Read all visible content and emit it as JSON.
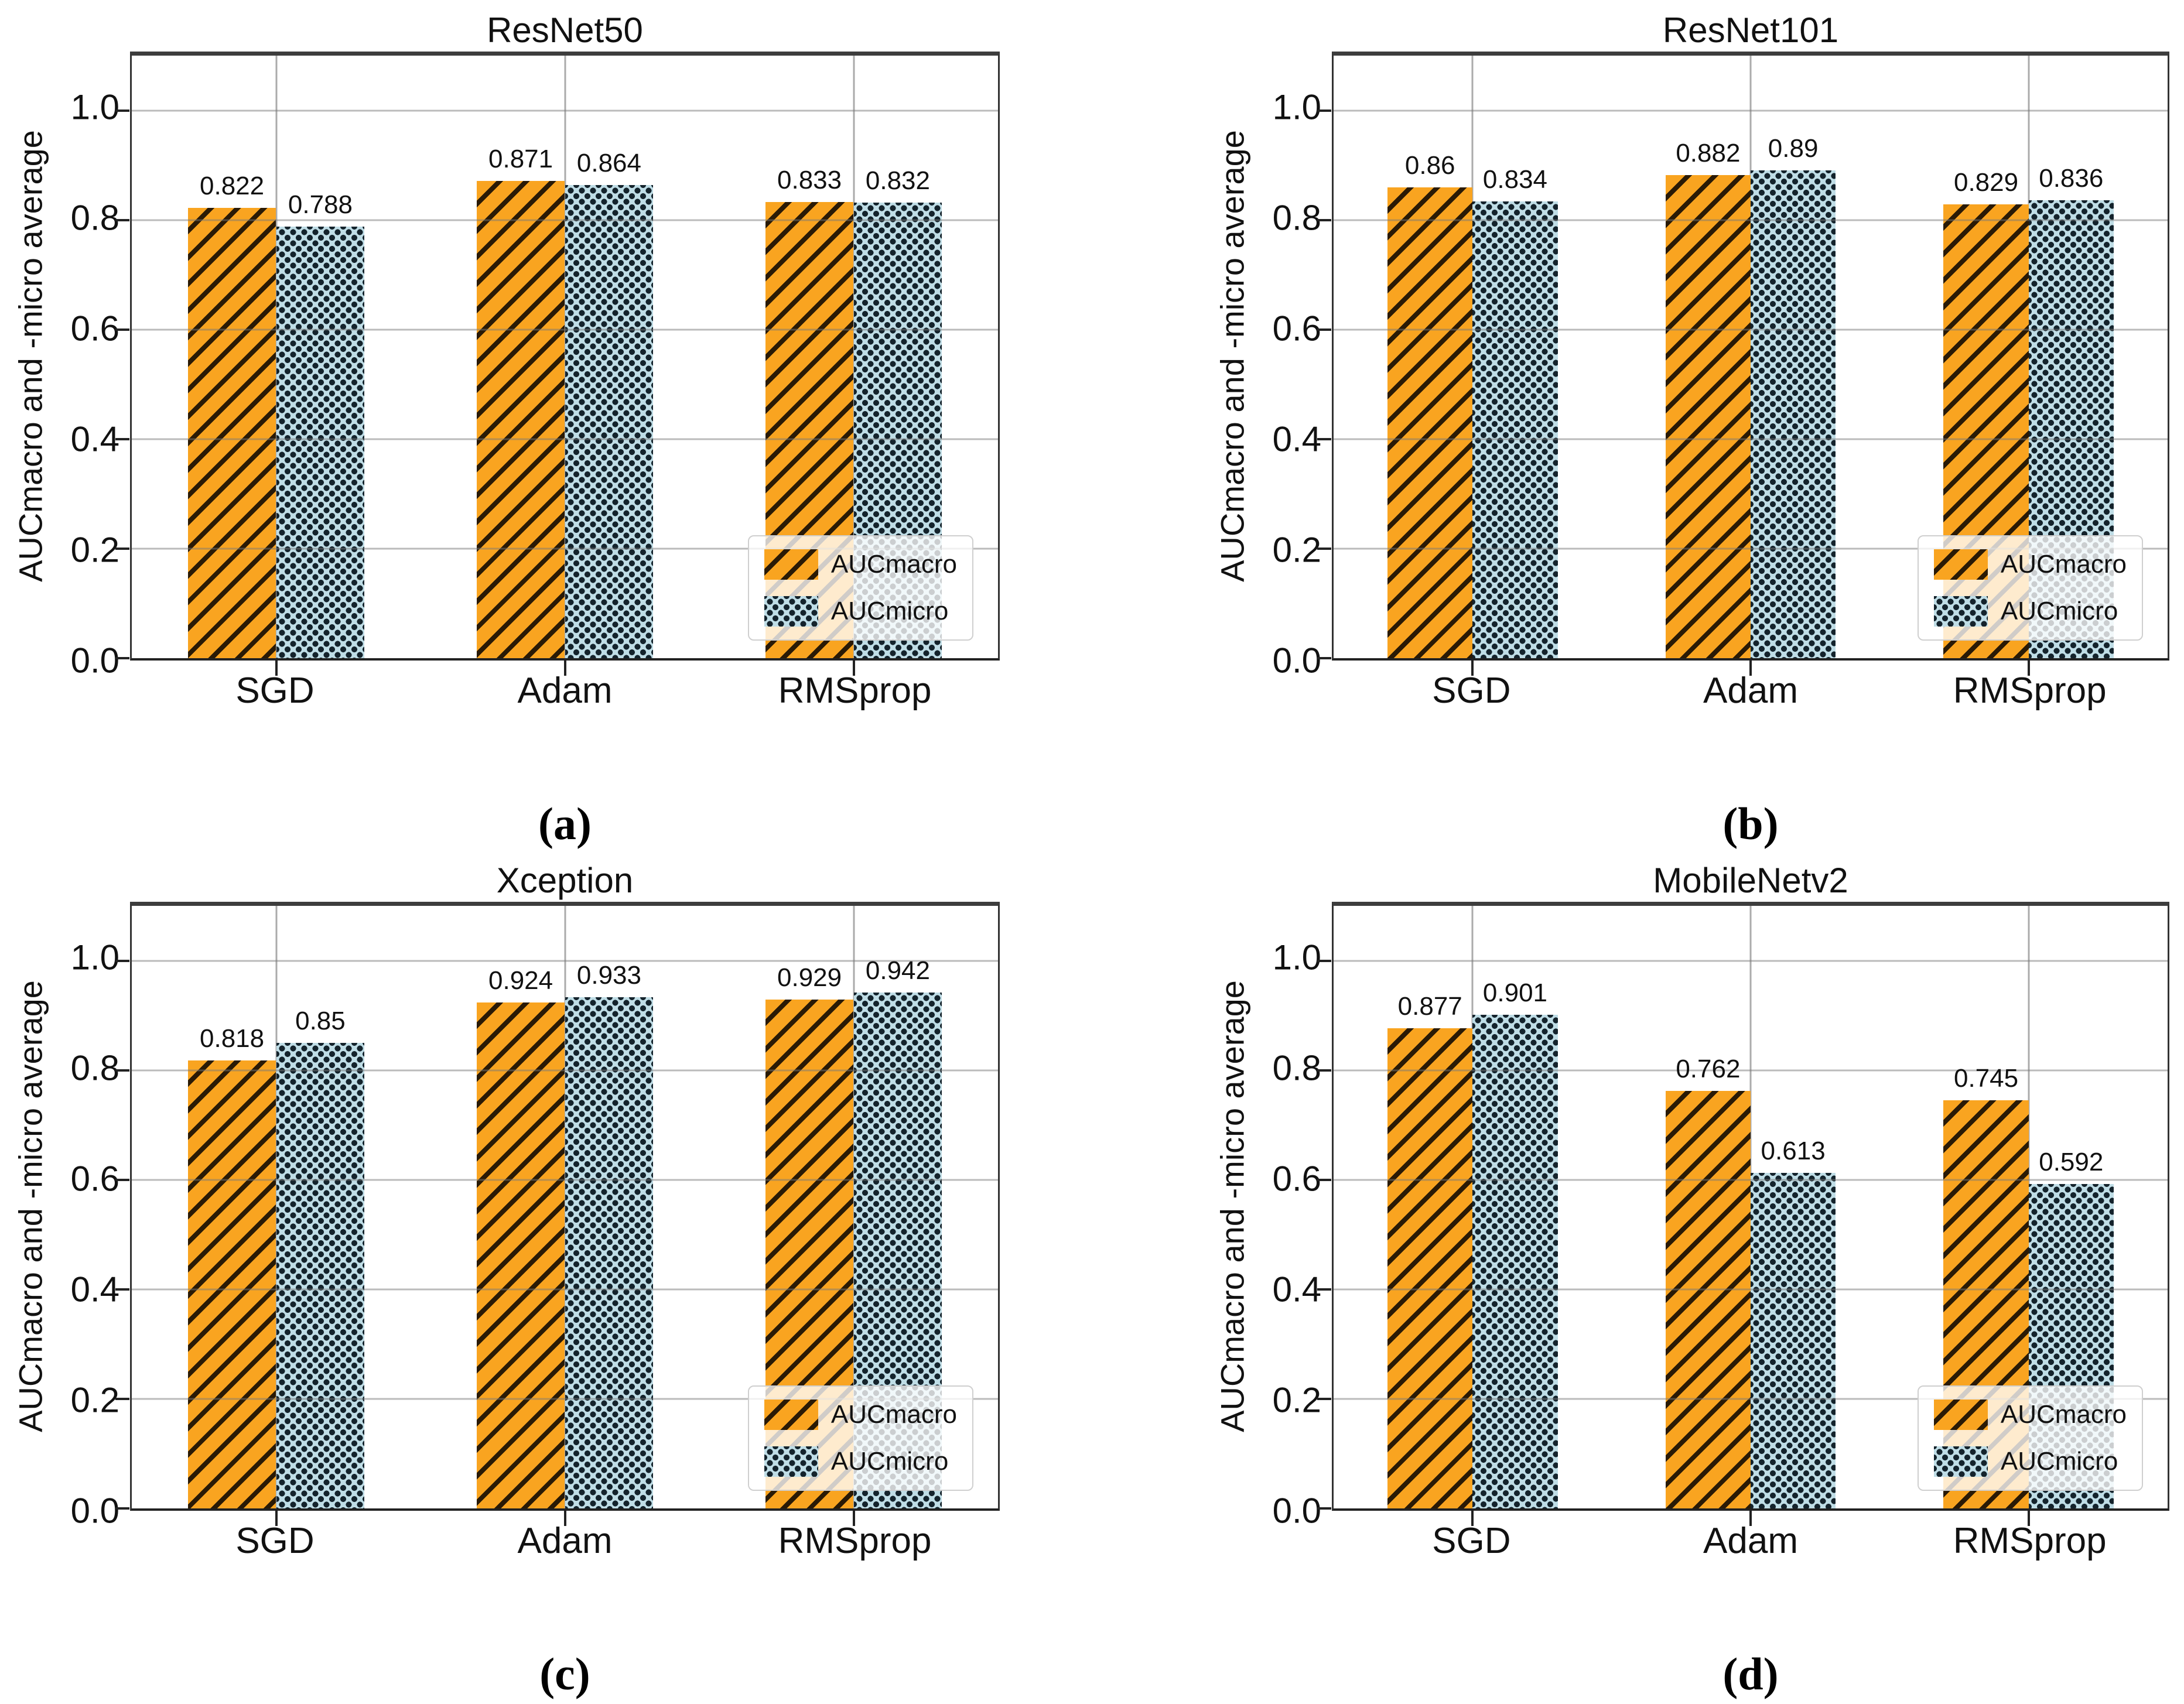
{
  "figure": {
    "background": "#ffffff",
    "ylabel": "AUCmacro and -micro average",
    "legend_labels": [
      "AUCmacro",
      "AUCmicro"
    ],
    "colors": {
      "macro_fill": "#F9A420",
      "macro_hatch": "#2A1A05",
      "micro_fill": "#BFDDE6",
      "micro_dot": "#14232C",
      "grid": "#ABABAB",
      "spine": "#333333",
      "text": "#111111"
    }
  },
  "chart_data": [
    {
      "type": "bar",
      "id": "a",
      "title": "ResNet50",
      "caption": "(a)",
      "categories": [
        "SGD",
        "Adam",
        "RMSprop"
      ],
      "series": [
        {
          "name": "AUCmacro",
          "values": [
            0.822,
            0.871,
            0.833
          ]
        },
        {
          "name": "AUCmicro",
          "values": [
            0.788,
            0.864,
            0.832
          ]
        }
      ],
      "xlabel": "",
      "ylabel": "AUCmacro and -micro average",
      "yticks": [
        0.0,
        0.2,
        0.4,
        0.6,
        0.8,
        1.0
      ],
      "ylim": [
        0,
        1.1
      ],
      "grid": true,
      "legend_position": "lower right"
    },
    {
      "type": "bar",
      "id": "b",
      "title": "ResNet101",
      "caption": "(b)",
      "categories": [
        "SGD",
        "Adam",
        "RMSprop"
      ],
      "series": [
        {
          "name": "AUCmacro",
          "values": [
            0.86,
            0.882,
            0.829
          ]
        },
        {
          "name": "AUCmicro",
          "values": [
            0.834,
            0.89,
            0.836
          ]
        }
      ],
      "xlabel": "",
      "ylabel": "AUCmacro and -micro average",
      "yticks": [
        0.0,
        0.2,
        0.4,
        0.6,
        0.8,
        1.0
      ],
      "ylim": [
        0,
        1.1
      ],
      "grid": true,
      "legend_position": "lower right"
    },
    {
      "type": "bar",
      "id": "c",
      "title": "Xception",
      "caption": "(c)",
      "categories": [
        "SGD",
        "Adam",
        "RMSprop"
      ],
      "series": [
        {
          "name": "AUCmacro",
          "values": [
            0.818,
            0.924,
            0.929
          ]
        },
        {
          "name": "AUCmicro",
          "values": [
            0.85,
            0.933,
            0.942
          ]
        }
      ],
      "xlabel": "",
      "ylabel": "AUCmacro and -micro average",
      "yticks": [
        0.0,
        0.2,
        0.4,
        0.6,
        0.8,
        1.0
      ],
      "ylim": [
        0,
        1.1
      ],
      "grid": true,
      "legend_position": "lower right"
    },
    {
      "type": "bar",
      "id": "d",
      "title": "MobileNetv2",
      "caption": "(d)",
      "categories": [
        "SGD",
        "Adam",
        "RMSprop"
      ],
      "series": [
        {
          "name": "AUCmacro",
          "values": [
            0.877,
            0.762,
            0.745
          ]
        },
        {
          "name": "AUCmicro",
          "values": [
            0.901,
            0.613,
            0.592
          ]
        }
      ],
      "xlabel": "",
      "ylabel": "AUCmacro and -micro average",
      "yticks": [
        0.0,
        0.2,
        0.4,
        0.6,
        0.8,
        1.0
      ],
      "ylim": [
        0,
        1.1
      ],
      "grid": true,
      "legend_position": "lower right"
    }
  ]
}
